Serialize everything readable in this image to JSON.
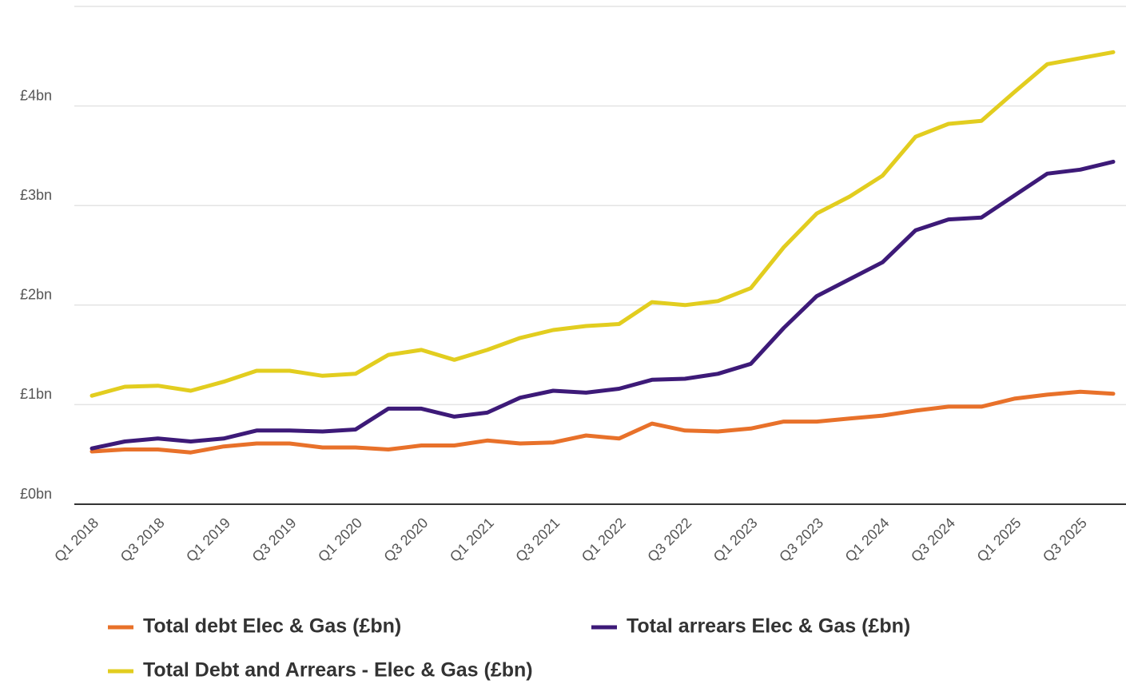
{
  "chart_data": {
    "type": "line",
    "categories": [
      "Q1 2018",
      null,
      "Q3 2018",
      null,
      "Q1 2019",
      null,
      "Q3 2019",
      null,
      "Q1 2020",
      null,
      "Q3 2020",
      null,
      "Q1 2021",
      null,
      "Q3 2021",
      null,
      "Q1 2022",
      null,
      "Q3 2022",
      null,
      "Q1 2023",
      null,
      "Q3 2023",
      null,
      "Q1 2024",
      null,
      "Q3 2024",
      null,
      "Q1 2025",
      null,
      "Q3 2025",
      null
    ],
    "series": [
      {
        "name": "Total debt Elec & Gas (£bn)",
        "color": "#e8712a",
        "values": [
          0.53,
          0.55,
          0.55,
          0.52,
          0.58,
          0.61,
          0.61,
          0.57,
          0.57,
          0.55,
          0.59,
          0.59,
          0.64,
          0.61,
          0.62,
          0.69,
          0.66,
          0.81,
          0.74,
          0.73,
          0.76,
          0.83,
          0.83,
          0.86,
          0.89,
          0.94,
          0.98,
          0.98,
          1.06,
          1.1,
          1.13,
          1.11
        ]
      },
      {
        "name": "Total arrears Elec & Gas (£bn)",
        "color": "#3d1a78",
        "values": [
          0.56,
          0.63,
          0.66,
          0.63,
          0.66,
          0.74,
          0.74,
          0.73,
          0.75,
          0.96,
          0.96,
          0.88,
          0.92,
          1.07,
          1.14,
          1.12,
          1.16,
          1.25,
          1.26,
          1.31,
          1.41,
          1.77,
          2.09,
          2.26,
          2.43,
          2.75,
          2.86,
          2.88,
          3.1,
          3.32,
          3.36,
          3.44
        ]
      },
      {
        "name": "Total Debt and Arrears - Elec & Gas (£bn)",
        "color": "#e2cd1f",
        "values": [
          1.09,
          1.18,
          1.19,
          1.14,
          1.23,
          1.34,
          1.34,
          1.29,
          1.31,
          1.5,
          1.55,
          1.45,
          1.55,
          1.67,
          1.75,
          1.79,
          1.81,
          2.03,
          2.0,
          2.04,
          2.17,
          2.58,
          2.92,
          3.09,
          3.3,
          3.69,
          3.82,
          3.85,
          4.14,
          4.42,
          4.48,
          4.54
        ]
      }
    ],
    "ylim": [
      0,
      5
    ],
    "yticks": [
      {
        "value": 0,
        "label": "£0bn"
      },
      {
        "value": 1,
        "label": "£1bn"
      },
      {
        "value": 2,
        "label": "£2bn"
      },
      {
        "value": 3,
        "label": "£3bn"
      },
      {
        "value": 4,
        "label": "£4bn"
      }
    ],
    "grid": true
  }
}
